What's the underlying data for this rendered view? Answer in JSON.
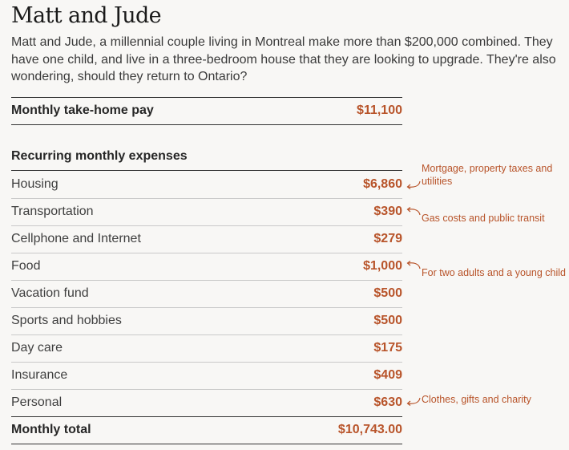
{
  "header": {
    "title": "Matt and Jude",
    "intro": "Matt and Jude, a millennial couple living in Montreal make more than $200,000 combined. They have one child, and live in a three-bedroom house that they are looking to upgrade. They're also wondering, should they return to Ontario?"
  },
  "income": {
    "label": "Monthly take-home pay",
    "value": "$11,100"
  },
  "expenses": {
    "heading": "Recurring monthly expenses",
    "items": [
      {
        "label": "Housing",
        "value": "$6,860"
      },
      {
        "label": "Transportation",
        "value": "$390"
      },
      {
        "label": "Cellphone and Internet",
        "value": "$279"
      },
      {
        "label": "Food",
        "value": "$1,000"
      },
      {
        "label": "Vacation fund",
        "value": "$500"
      },
      {
        "label": "Sports and hobbies",
        "value": "$500"
      },
      {
        "label": "Day care",
        "value": "$175"
      },
      {
        "label": "Insurance",
        "value": "$409"
      },
      {
        "label": "Personal",
        "value": "$630"
      }
    ],
    "total_label": "Monthly total",
    "total_value": "$10,743.00"
  },
  "notes": {
    "housing": "Mortgage, property taxes and utilities",
    "transportation": "Gas costs and public transit",
    "food": "For two adults and a young child",
    "personal": "Clothes, gifts and charity"
  },
  "colors": {
    "accent": "#b8542a",
    "text": "#333333",
    "background": "#f8f7f5"
  }
}
